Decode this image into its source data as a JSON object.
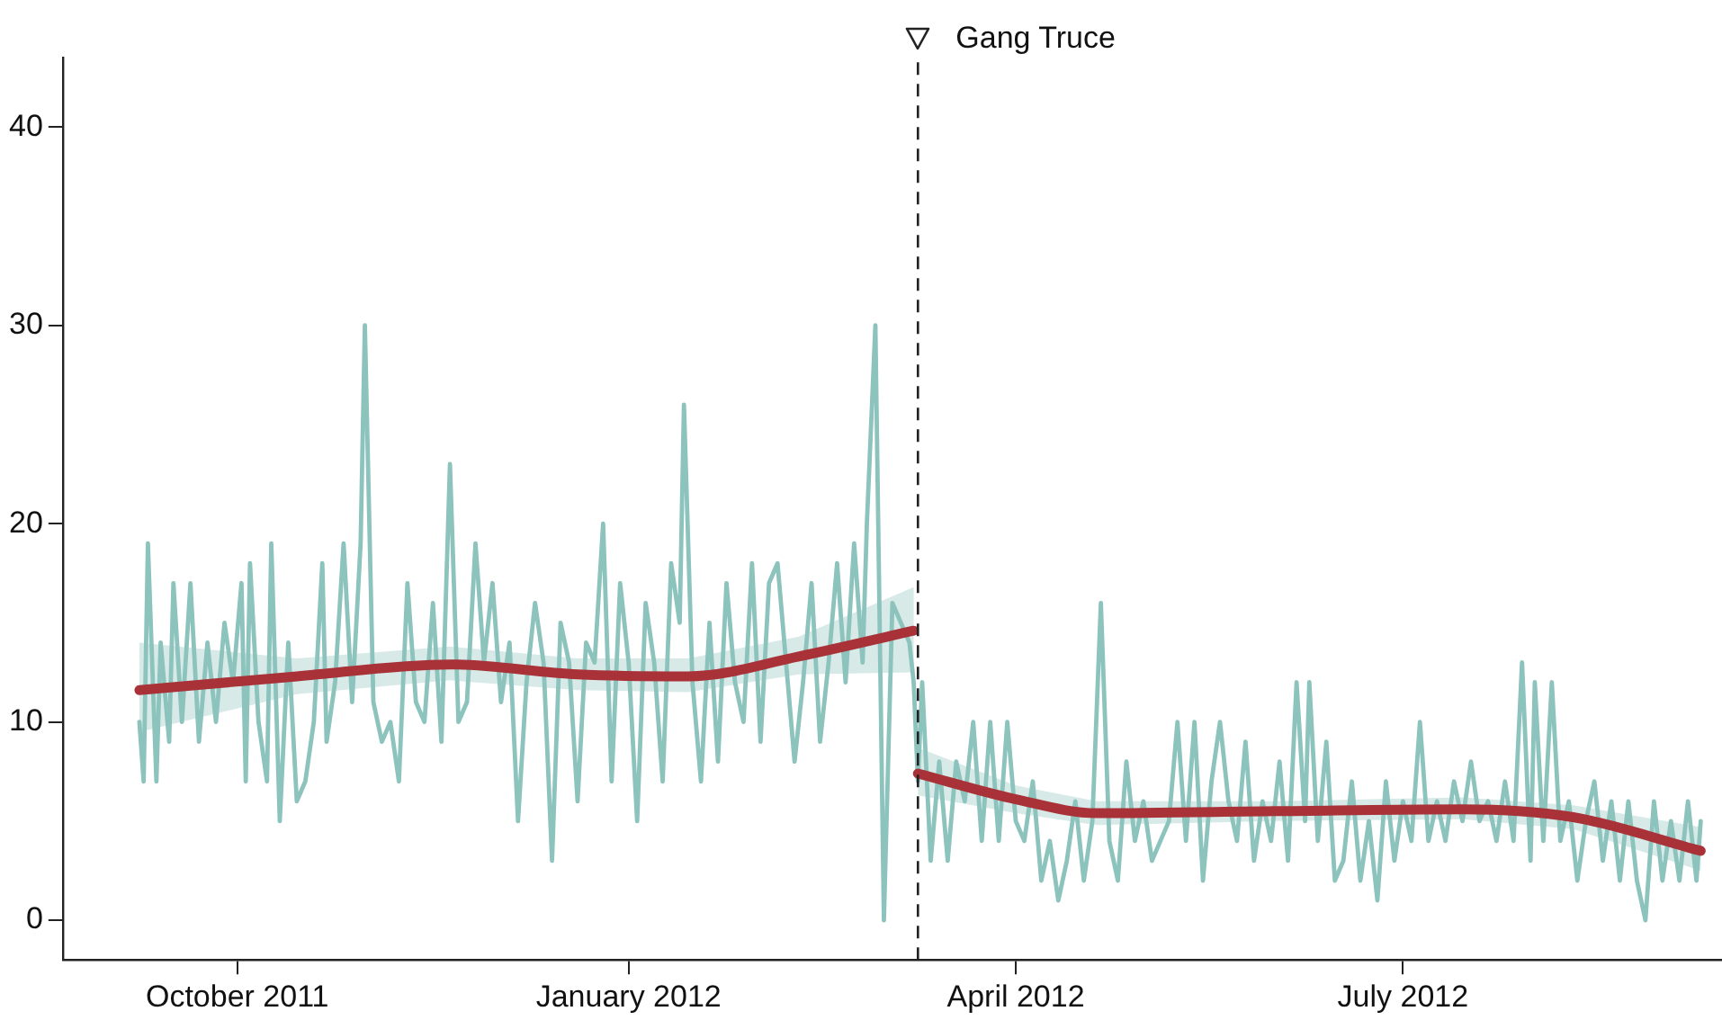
{
  "chart_data": {
    "type": "line",
    "xlim": [
      "2011-08-21",
      "2012-09-14"
    ],
    "xticks": [
      {
        "value": "2011-10-01",
        "label": "October 2011"
      },
      {
        "value": "2012-01-01",
        "label": "January 2012"
      },
      {
        "value": "2012-04-01",
        "label": "April 2012"
      },
      {
        "value": "2012-07-01",
        "label": "July 2012"
      }
    ],
    "ylim": [
      -2,
      43.5
    ],
    "yticks": [
      0,
      10,
      20,
      30,
      40
    ],
    "grid": false,
    "legend": false,
    "marker": "none",
    "ref_lines": [
      {
        "axis": "x",
        "value": "2012-03-09",
        "label": "Gang Truce",
        "line_style": "dashed",
        "color": "#222222"
      }
    ],
    "series": [
      {
        "color": "#8cc3bd",
        "line_style": "solid",
        "x": [
          "2011-09-08",
          "2011-09-09",
          "2011-09-10",
          "2011-09-12",
          "2011-09-13",
          "2011-09-15",
          "2011-09-16",
          "2011-09-18",
          "2011-09-20",
          "2011-09-22",
          "2011-09-24",
          "2011-09-26",
          "2011-09-28",
          "2011-09-30",
          "2011-10-02",
          "2011-10-03",
          "2011-10-04",
          "2011-10-06",
          "2011-10-08",
          "2011-10-09",
          "2011-10-11",
          "2011-10-13",
          "2011-10-15",
          "2011-10-17",
          "2011-10-19",
          "2011-10-21",
          "2011-10-22",
          "2011-10-24",
          "2011-10-26",
          "2011-10-28",
          "2011-10-30",
          "2011-10-31",
          "2011-11-02",
          "2011-11-04",
          "2011-11-06",
          "2011-11-08",
          "2011-11-10",
          "2011-11-12",
          "2011-11-14",
          "2011-11-16",
          "2011-11-18",
          "2011-11-20",
          "2011-11-22",
          "2011-11-24",
          "2011-11-26",
          "2011-11-28",
          "2011-11-30",
          "2011-12-02",
          "2011-12-04",
          "2011-12-06",
          "2011-12-08",
          "2011-12-10",
          "2011-12-12",
          "2011-12-14",
          "2011-12-16",
          "2011-12-18",
          "2011-12-20",
          "2011-12-22",
          "2011-12-24",
          "2011-12-26",
          "2011-12-28",
          "2011-12-30",
          "2012-01-01",
          "2012-01-03",
          "2012-01-05",
          "2012-01-07",
          "2012-01-09",
          "2012-01-11",
          "2012-01-13",
          "2012-01-14",
          "2012-01-16",
          "2012-01-18",
          "2012-01-20",
          "2012-01-22",
          "2012-01-24",
          "2012-01-26",
          "2012-01-28",
          "2012-01-30",
          "2012-02-01",
          "2012-02-03",
          "2012-02-05",
          "2012-02-07",
          "2012-02-09",
          "2012-02-11",
          "2012-02-13",
          "2012-02-15",
          "2012-02-17",
          "2012-02-19",
          "2012-02-21",
          "2012-02-23",
          "2012-02-25",
          "2012-02-26",
          "2012-02-28",
          "2012-03-01",
          "2012-03-03",
          "2012-03-05",
          "2012-03-07",
          "2012-03-08",
          "2012-03-09",
          "2012-03-10",
          "2012-03-12",
          "2012-03-14",
          "2012-03-16",
          "2012-03-18",
          "2012-03-20",
          "2012-03-22",
          "2012-03-24",
          "2012-03-26",
          "2012-03-28",
          "2012-03-30",
          "2012-04-01",
          "2012-04-03",
          "2012-04-05",
          "2012-04-07",
          "2012-04-09",
          "2012-04-11",
          "2012-04-13",
          "2012-04-15",
          "2012-04-17",
          "2012-04-19",
          "2012-04-21",
          "2012-04-23",
          "2012-04-25",
          "2012-04-27",
          "2012-04-29",
          "2012-05-01",
          "2012-05-03",
          "2012-05-05",
          "2012-05-07",
          "2012-05-09",
          "2012-05-11",
          "2012-05-13",
          "2012-05-15",
          "2012-05-17",
          "2012-05-19",
          "2012-05-21",
          "2012-05-23",
          "2012-05-25",
          "2012-05-27",
          "2012-05-29",
          "2012-05-31",
          "2012-06-02",
          "2012-06-04",
          "2012-06-06",
          "2012-06-08",
          "2012-06-09",
          "2012-06-11",
          "2012-06-13",
          "2012-06-15",
          "2012-06-17",
          "2012-06-19",
          "2012-06-21",
          "2012-06-23",
          "2012-06-25",
          "2012-06-27",
          "2012-06-29",
          "2012-07-01",
          "2012-07-03",
          "2012-07-05",
          "2012-07-07",
          "2012-07-09",
          "2012-07-11",
          "2012-07-13",
          "2012-07-15",
          "2012-07-17",
          "2012-07-19",
          "2012-07-21",
          "2012-07-23",
          "2012-07-25",
          "2012-07-27",
          "2012-07-29",
          "2012-07-31",
          "2012-08-01",
          "2012-08-03",
          "2012-08-05",
          "2012-08-07",
          "2012-08-09",
          "2012-08-11",
          "2012-08-13",
          "2012-08-15",
          "2012-08-17",
          "2012-08-19",
          "2012-08-21",
          "2012-08-23",
          "2012-08-25",
          "2012-08-27",
          "2012-08-29",
          "2012-08-31",
          "2012-09-02",
          "2012-09-04",
          "2012-09-06",
          "2012-09-08",
          "2012-09-09"
        ],
        "values": [
          10,
          7,
          19,
          7,
          14,
          9,
          17,
          10,
          17,
          9,
          14,
          10,
          15,
          12,
          17,
          7,
          18,
          10,
          7,
          19,
          5,
          14,
          6,
          7,
          10,
          18,
          9,
          12,
          19,
          11,
          19,
          30,
          11,
          9,
          10,
          7,
          17,
          11,
          10,
          16,
          9,
          23,
          10,
          11,
          19,
          13,
          17,
          11,
          14,
          5,
          12,
          16,
          13,
          3,
          15,
          13,
          6,
          14,
          13,
          20,
          7,
          17,
          13,
          5,
          16,
          13,
          7,
          18,
          15,
          26,
          12,
          7,
          15,
          8,
          17,
          12,
          10,
          18,
          9,
          17,
          18,
          13,
          8,
          12,
          17,
          9,
          13,
          18,
          12,
          19,
          13,
          20,
          30,
          0,
          16,
          15,
          14,
          12,
          7,
          12,
          3,
          8,
          3,
          8,
          6,
          10,
          4,
          10,
          4,
          10,
          5,
          4,
          7,
          2,
          4,
          1,
          3,
          6,
          2,
          5,
          16,
          4,
          2,
          8,
          4,
          6,
          3,
          4,
          5,
          10,
          4,
          10,
          2,
          7,
          10,
          6,
          4,
          9,
          3,
          6,
          4,
          8,
          3,
          12,
          5,
          12,
          4,
          9,
          2,
          3,
          7,
          2,
          5,
          1,
          7,
          3,
          6,
          4,
          10,
          4,
          6,
          4,
          7,
          5,
          8,
          5,
          6,
          4,
          7,
          4,
          13,
          3,
          12,
          4,
          12,
          4,
          6,
          2,
          5,
          7,
          3,
          6,
          2,
          6,
          2,
          0,
          6,
          2,
          5,
          2,
          6,
          2,
          5
        ]
      },
      {
        "color": "#a83238",
        "line_style": "solid",
        "x": [
          "2011-09-08",
          "2011-10-15",
          "2011-11-20",
          "2011-12-20",
          "2012-01-15",
          "2012-02-10",
          "2012-03-08"
        ],
        "values": [
          11.6,
          12.3,
          12.9,
          12.4,
          12.3,
          13.3,
          14.6
        ],
        "lower": [
          9.5,
          11.4,
          12.1,
          11.6,
          11.5,
          12.4,
          12.5
        ],
        "upper": [
          14,
          13.2,
          13.8,
          13.2,
          13.2,
          14.3,
          16.8
        ]
      },
      {
        "color": "#a83238",
        "line_style": "solid",
        "x": [
          "2012-03-09",
          "2012-04-01",
          "2012-04-20",
          "2012-06-01",
          "2012-07-15",
          "2012-08-10",
          "2012-09-09"
        ],
        "values": [
          7.4,
          6.1,
          5.4,
          5.5,
          5.6,
          5.2,
          3.5
        ],
        "lower": [
          6.3,
          5.4,
          4.8,
          5,
          5.1,
          4.6,
          2.5
        ],
        "upper": [
          8.7,
          6.8,
          6,
          6,
          6.2,
          5.8,
          4.7
        ]
      }
    ]
  }
}
